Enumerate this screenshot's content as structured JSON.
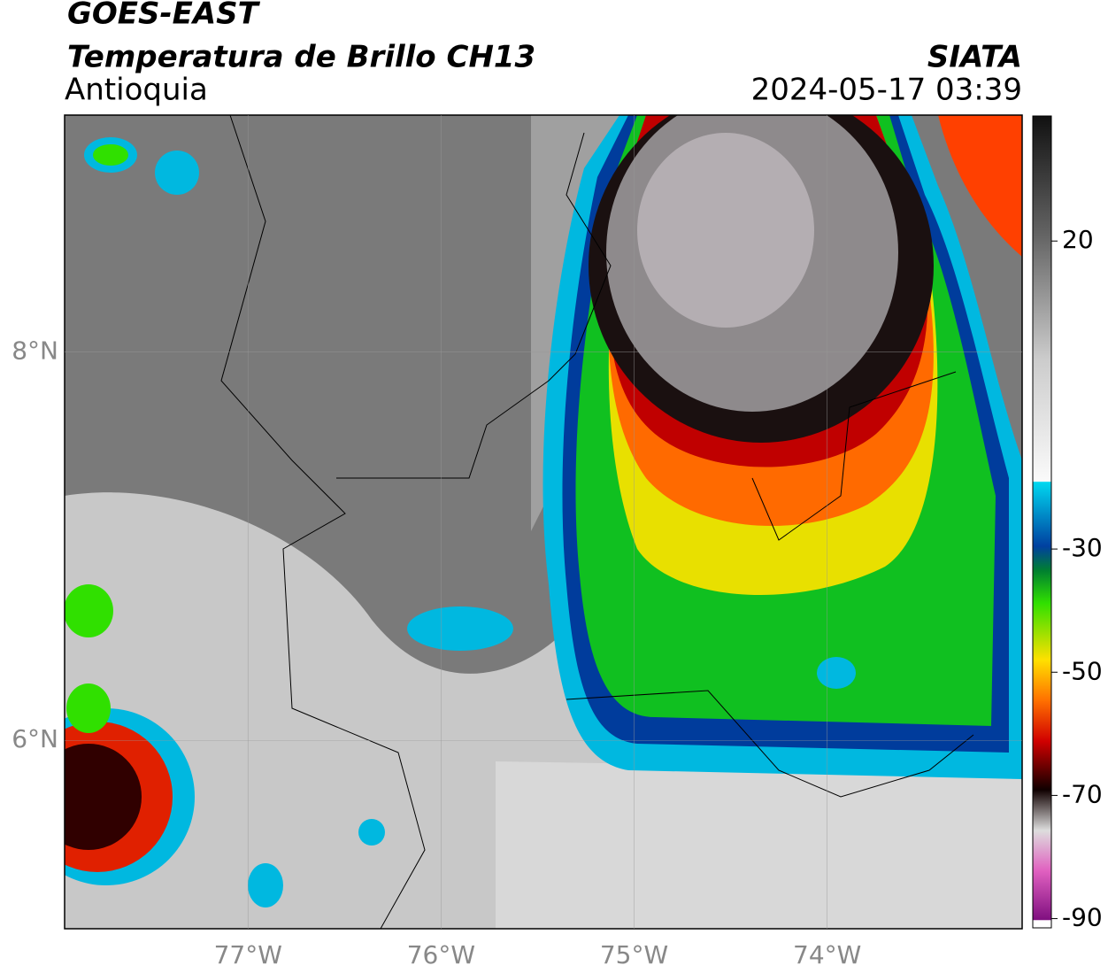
{
  "header": {
    "title": "GOES-EAST",
    "subtitle": "Temperatura de Brillo CH13",
    "region": "Antioquia",
    "source": "SIATA",
    "timestamp": "2024-05-17 03:39"
  },
  "map": {
    "xlim": [
      -77.95,
      -72.99
    ],
    "ylim": [
      5.03,
      9.22
    ],
    "xticks": [
      {
        "value": -77,
        "label": "77°W"
      },
      {
        "value": -76,
        "label": "76°W"
      },
      {
        "value": -75,
        "label": "75°W"
      },
      {
        "value": -74,
        "label": "74°W"
      }
    ],
    "yticks": [
      {
        "value": 8,
        "label": "8°N"
      },
      {
        "value": 6,
        "label": "6°N"
      }
    ]
  },
  "colorbar": {
    "lim": [
      -91.5,
      40.3
    ],
    "ticks": [
      20,
      -30,
      -50,
      -70,
      -90
    ]
  }
}
